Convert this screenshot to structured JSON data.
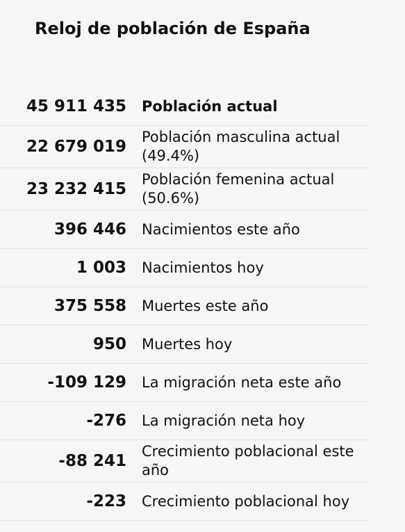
{
  "header": {
    "title": "Reloj de población de España"
  },
  "stats": [
    {
      "value": "45 911 435",
      "label": "Población actual"
    },
    {
      "value": "22 679 019",
      "label": "Población masculina actual (49.4%)"
    },
    {
      "value": "23 232 415",
      "label": "Población femenina actual (50.6%)"
    },
    {
      "value": "396 446",
      "label": "Nacimientos este año"
    },
    {
      "value": "1 003",
      "label": "Nacimientos hoy"
    },
    {
      "value": "375 558",
      "label": "Muertes este año"
    },
    {
      "value": "950",
      "label": "Muertes hoy"
    },
    {
      "value": "-109 129",
      "label": "La migración neta este año"
    },
    {
      "value": "-276",
      "label": "La migración neta hoy"
    },
    {
      "value": "-88 241",
      "label": "Crecimiento poblacional este año"
    },
    {
      "value": "-223",
      "label": "Crecimiento poblacional hoy"
    }
  ]
}
